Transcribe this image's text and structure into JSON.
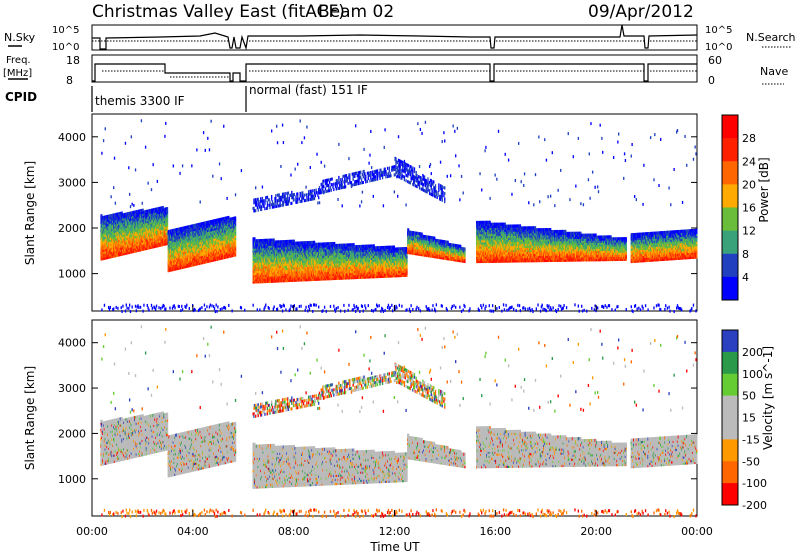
{
  "header": {
    "title": "Christmas Valley East (fitACF)",
    "beam": "Beam 02",
    "date": "09/Apr/2012"
  },
  "top_panels": {
    "nsky_label": "N.Sky",
    "nsky_ticks": [
      "10^5",
      "10^0"
    ],
    "nsearch_label": "N.Search",
    "nsearch_ticks": [
      "10^5",
      "10^0"
    ],
    "freq_label_1": "Freq.",
    "freq_label_2": "[MHz]",
    "freq_ticks": [
      "18",
      "8"
    ],
    "nave_label": "Nave",
    "nave_ticks": [
      "60",
      "0"
    ],
    "cpid_label": "CPID",
    "cpid_modes": [
      "themis 3300 IF",
      "normal (fast) 151 IF"
    ]
  },
  "colors": {
    "power": [
      "#0000ff",
      "#2040c0",
      "#3aa27a",
      "#6abd3a",
      "#ffaa00",
      "#ff6600",
      "#ff2000",
      "#ff0000"
    ],
    "velocity": [
      "#ff0000",
      "#ff6600",
      "#ff9900",
      "#bbbbbb",
      "#bbbbbb",
      "#66cc33",
      "#2a9a4a",
      "#2a40c0"
    ],
    "ground": "#bbbbbb"
  },
  "chart_data": [
    {
      "type": "heatmap",
      "quantity": "power",
      "ylabel": "Slant Range [km]",
      "ylim": [
        180,
        4500
      ],
      "yticks": [
        "4000",
        "3000",
        "2000",
        "1000"
      ],
      "xlim_hours": [
        0,
        24
      ],
      "colorbar": {
        "label": "Power [dB]",
        "ticks": [
          "28",
          "24",
          "20",
          "16",
          "12",
          "8",
          "4"
        ]
      }
    },
    {
      "type": "heatmap",
      "quantity": "velocity",
      "ylabel": "Slant Range [km]",
      "ylim": [
        180,
        4500
      ],
      "yticks": [
        "4000",
        "3000",
        "2000",
        "1000"
      ],
      "xlim_hours": [
        0,
        24
      ],
      "xticks": [
        "00:00",
        "04:00",
        "08:00",
        "12:00",
        "16:00",
        "20:00",
        "00:00"
      ],
      "xlabel": "Time UT",
      "colorbar": {
        "label": "Velocity [m s^-1]",
        "ticks": [
          "200",
          "100",
          "50",
          "15",
          "-15",
          "-50",
          "-100",
          "-200"
        ]
      }
    }
  ]
}
